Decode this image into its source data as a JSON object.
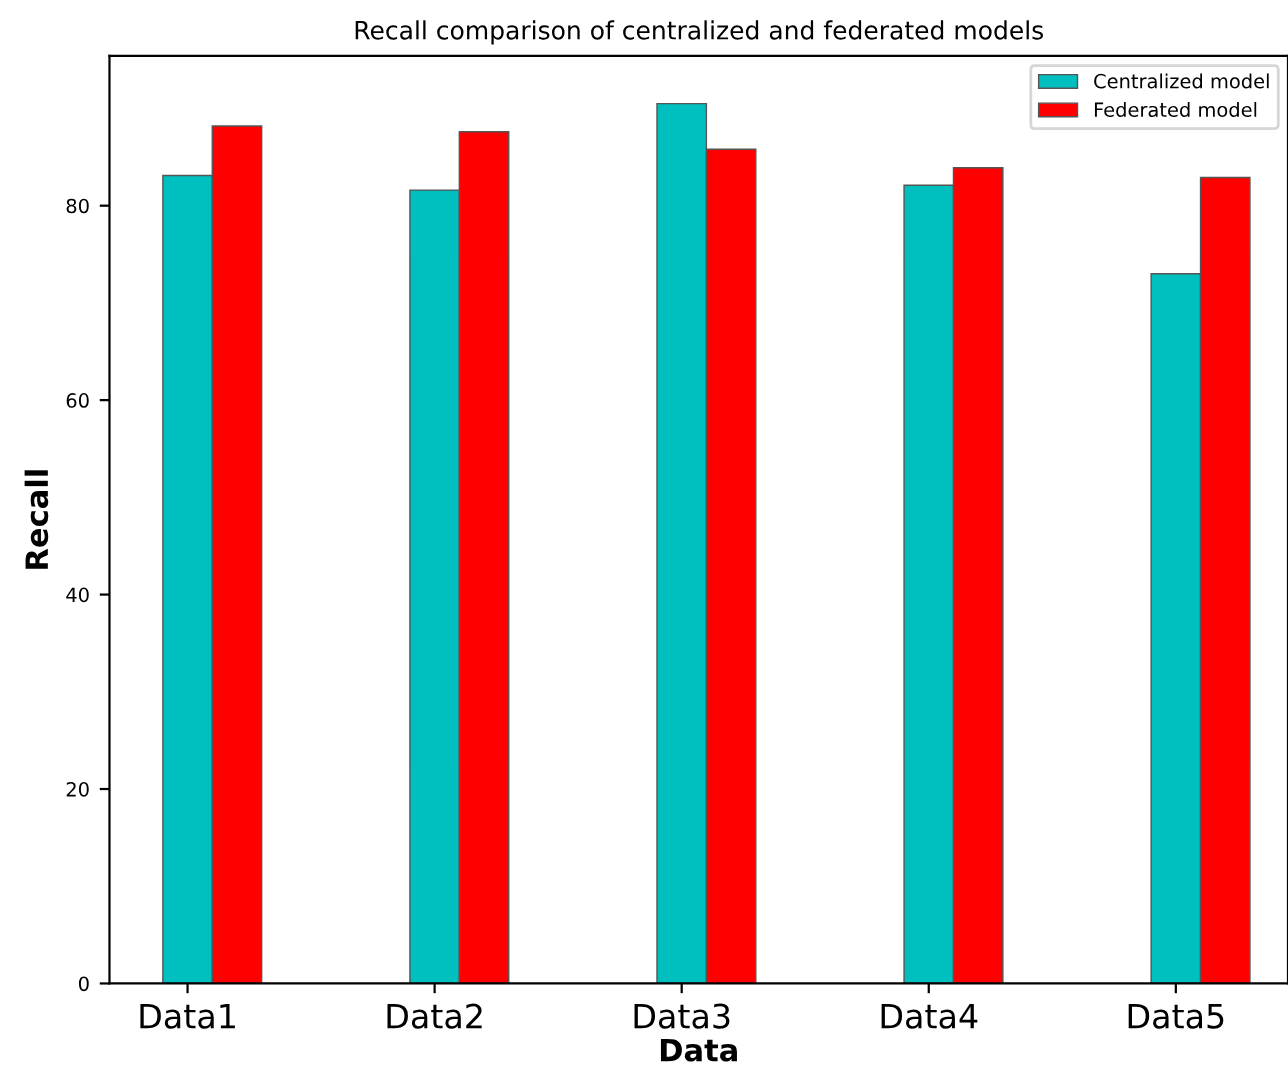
{
  "chart_data": {
    "type": "bar",
    "title": "Recall comparison of centralized and federated models",
    "xlabel": "Data",
    "ylabel": "Recall",
    "categories": [
      "Data1",
      "Data2",
      "Data3",
      "Data4",
      "Data5"
    ],
    "series": [
      {
        "name": "Centralized model",
        "color": "#00bfbf",
        "values": [
          83.1,
          81.6,
          90.5,
          82.1,
          73.0
        ]
      },
      {
        "name": "Federated model",
        "color": "#ff0000",
        "values": [
          88.2,
          87.6,
          85.8,
          83.9,
          82.9
        ]
      }
    ],
    "ylim": [
      0,
      95.4
    ],
    "yticks": [
      0,
      20,
      40,
      60,
      80
    ],
    "legend": "top right",
    "grid": false
  }
}
